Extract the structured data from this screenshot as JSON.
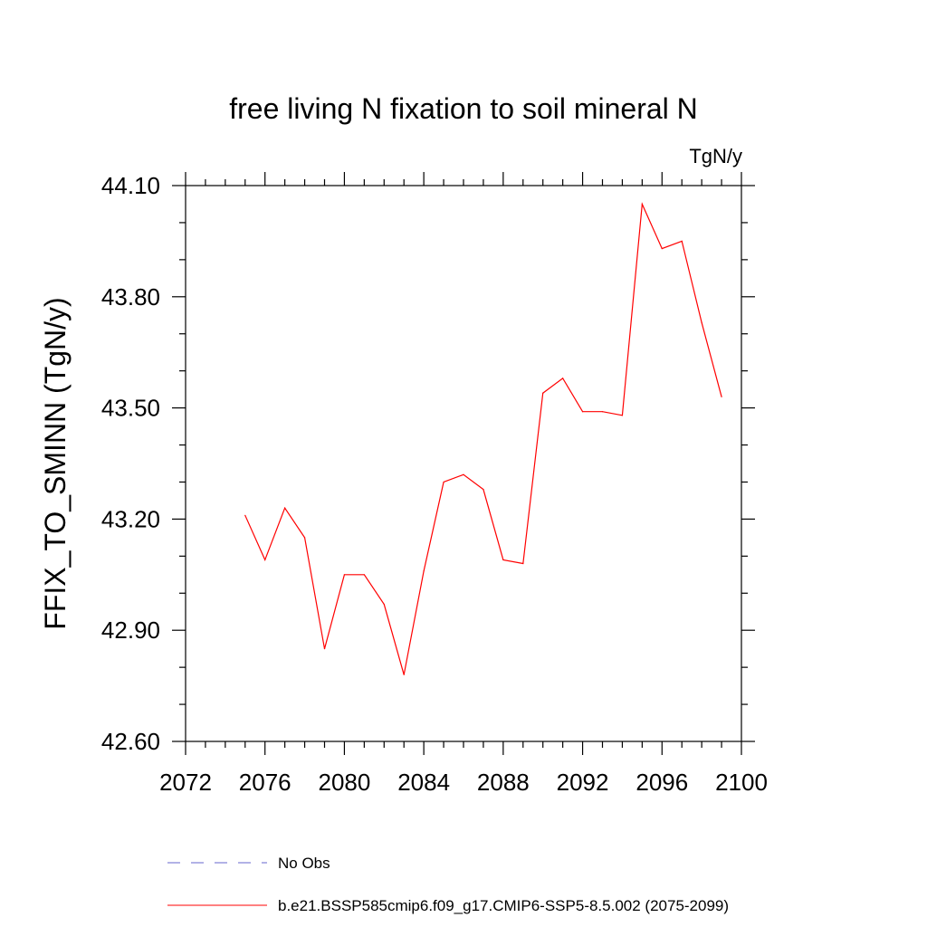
{
  "chart_data": {
    "type": "line",
    "title": "free living N fixation to soil mineral N",
    "units": "TgN/y",
    "xlabel": "",
    "ylabel": "FFIX_TO_SMINN  (TgN/y)",
    "xlim": [
      2072,
      2100
    ],
    "ylim": [
      42.6,
      44.1
    ],
    "x_ticks": [
      2072,
      2076,
      2080,
      2084,
      2088,
      2092,
      2096,
      2100
    ],
    "x_tick_labels": [
      "2072",
      "2076",
      "2080",
      "2084",
      "2088",
      "2092",
      "2096",
      "2100"
    ],
    "x_minor_step": 1,
    "y_ticks": [
      42.6,
      42.9,
      43.2,
      43.5,
      43.8,
      44.1
    ],
    "y_tick_labels": [
      "42.60",
      "42.90",
      "43.20",
      "43.50",
      "43.80",
      "44.10"
    ],
    "y_minor_step": 0.1,
    "grid": false,
    "legend_position": "bottom",
    "series": [
      {
        "name": "No Obs",
        "color": "#6666cc",
        "style": "dashed",
        "x": [],
        "values": []
      },
      {
        "name": "b.e21.BSSP585cmip6.f09_g17.CMIP6-SSP5-8.5.002 (2075-2099)",
        "color": "#ff0000",
        "style": "solid",
        "x": [
          2075,
          2076,
          2077,
          2078,
          2079,
          2080,
          2081,
          2082,
          2083,
          2084,
          2085,
          2086,
          2087,
          2088,
          2089,
          2090,
          2091,
          2092,
          2093,
          2094,
          2095,
          2096,
          2097,
          2098,
          2099
        ],
        "values": [
          43.21,
          43.09,
          43.23,
          43.15,
          42.85,
          43.05,
          43.05,
          42.97,
          42.78,
          43.06,
          43.3,
          43.32,
          43.28,
          43.09,
          43.08,
          43.54,
          43.58,
          43.49,
          43.49,
          43.48,
          44.05,
          43.93,
          43.95,
          43.73,
          43.53
        ]
      }
    ]
  }
}
